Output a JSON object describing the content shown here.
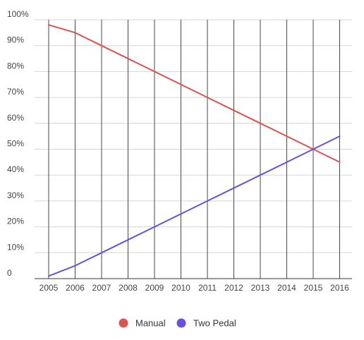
{
  "chart_data": {
    "type": "line",
    "title": "",
    "xlabel": "",
    "ylabel": "",
    "x": [
      2005,
      2006,
      2007,
      2008,
      2009,
      2010,
      2011,
      2012,
      2013,
      2014,
      2015,
      2016
    ],
    "x_tick_labels": [
      "2005",
      "2006",
      "2007",
      "2008",
      "2009",
      "2010",
      "2011",
      "2012",
      "2013",
      "2014",
      "2015",
      "2016"
    ],
    "y_tick_labels": [
      "0",
      "10%",
      "20%",
      "30%",
      "40%",
      "50%",
      "60%",
      "70%",
      "80%",
      "90%",
      "100%"
    ],
    "ylim": [
      0,
      100
    ],
    "grid": true,
    "legend_position": "bottom",
    "series": [
      {
        "name": "Manual",
        "color": "#d9534f",
        "values": [
          98,
          95,
          90,
          85,
          80,
          75,
          70,
          65,
          60,
          55,
          50,
          45
        ]
      },
      {
        "name": "Two Pedal",
        "color": "#6a4fe0",
        "values": [
          1,
          5,
          10,
          15,
          20,
          25,
          30,
          35,
          40,
          45,
          50,
          55
        ]
      }
    ]
  }
}
